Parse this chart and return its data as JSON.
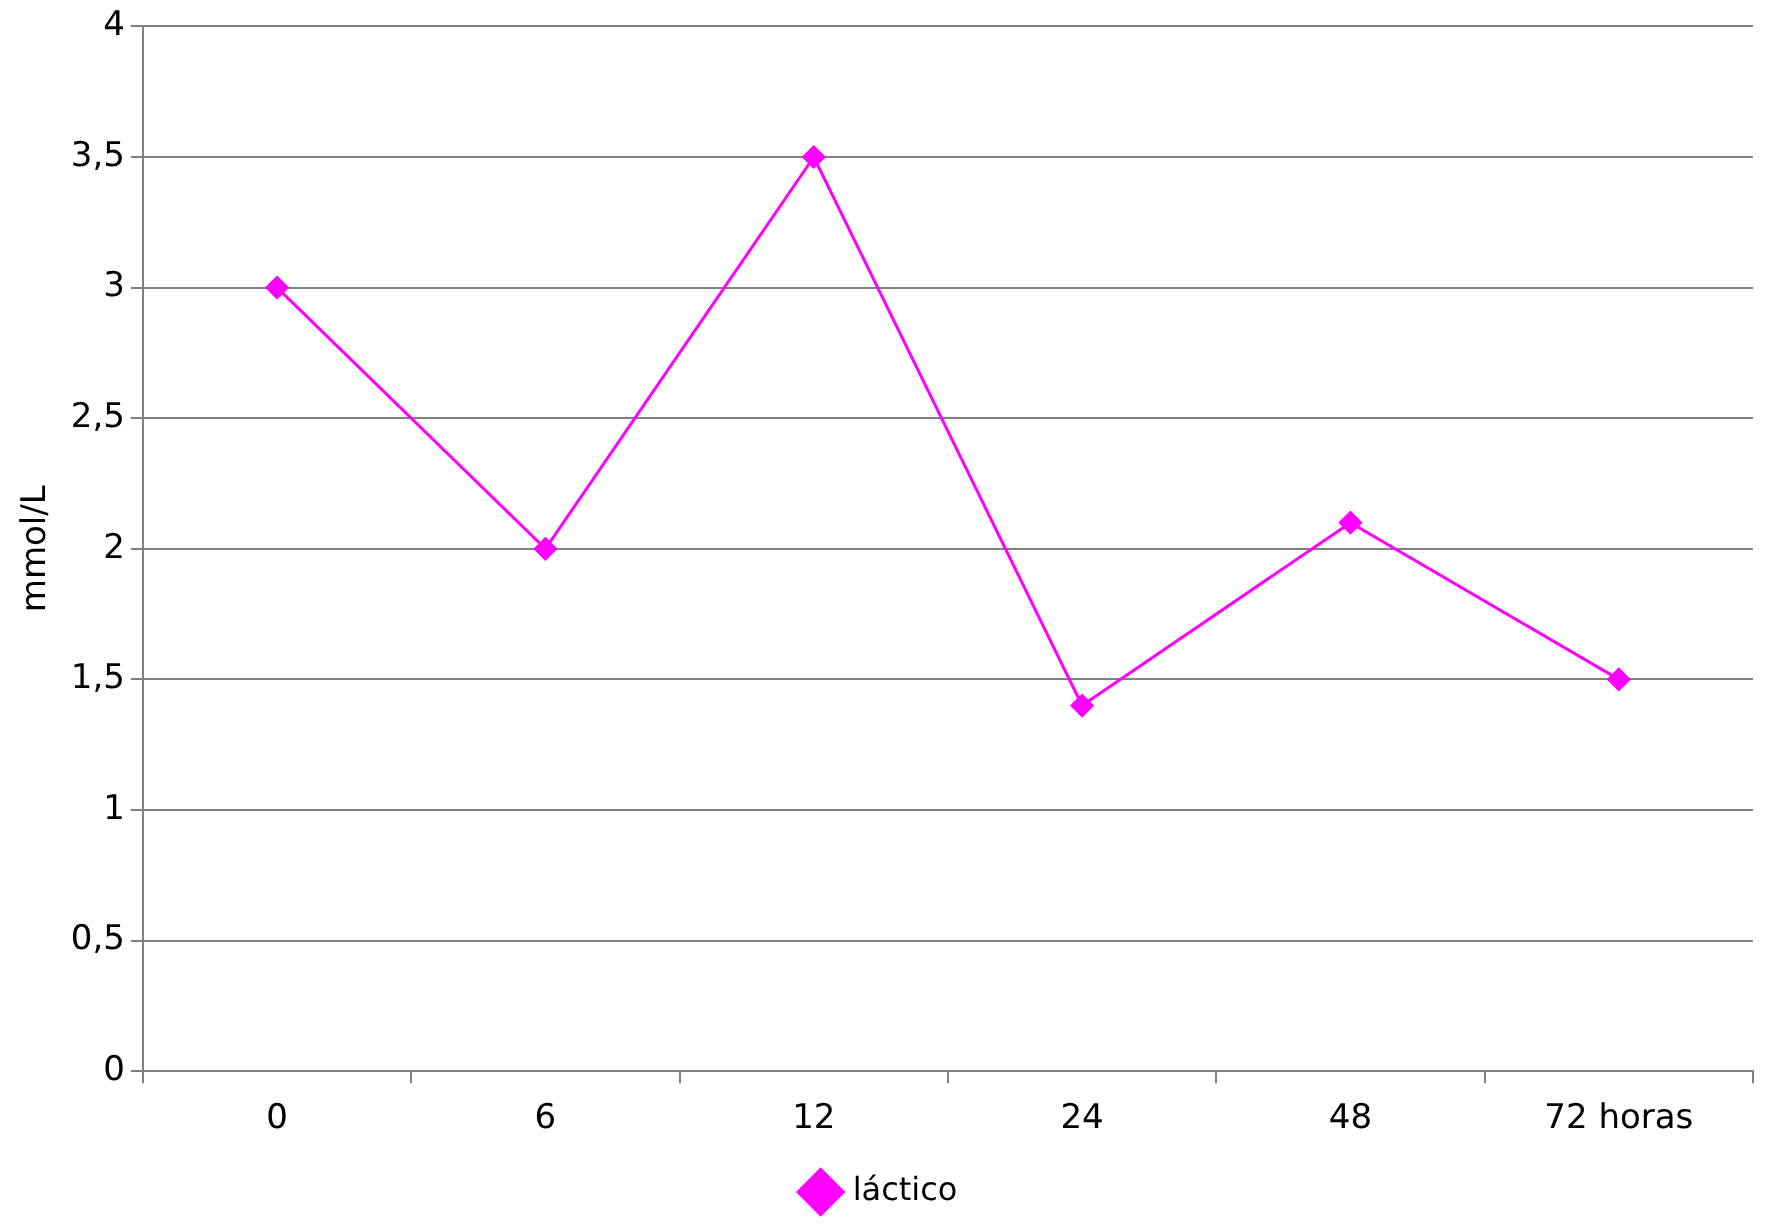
{
  "chart_data": {
    "type": "line",
    "ylabel": "mmol/L",
    "categories": [
      "0",
      "6",
      "12",
      "24",
      "48",
      "72 horas"
    ],
    "series": [
      {
        "name": "láctico",
        "color": "#ff00ff",
        "values": [
          3,
          2,
          3.5,
          1.4,
          2.1,
          1.5
        ]
      }
    ],
    "ylim": [
      0,
      4
    ],
    "yticks": [
      0,
      {
        "value": 0.5,
        "label": "0,5"
      },
      1,
      {
        "value": 1.5,
        "label": "1,5"
      },
      2,
      {
        "value": 2.5,
        "label": "2,5"
      },
      3,
      {
        "value": 3.5,
        "label": "3,5"
      },
      4
    ],
    "grid": "y",
    "legend": "bottom",
    "marker": "diamond",
    "line_style": "solid"
  }
}
